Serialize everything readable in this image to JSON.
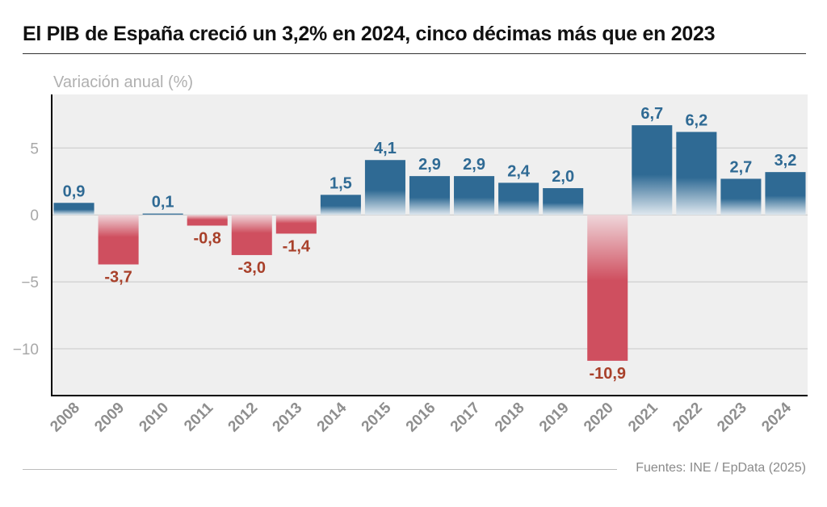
{
  "header": {
    "title": "El PIB de España creció un 3,2% en 2024, cinco décimas más que en 2023"
  },
  "footer": {
    "source": "Fuentes: INE / EpData (2025)"
  },
  "colors": {
    "positive": "#2f6a94",
    "negative": "#cf4f5f",
    "positive_label": "#2f6a94",
    "negative_label": "#a8402a",
    "plot_background": "#efefef",
    "grid": "#c8c8c8",
    "tick_label": "#a8a8a8"
  },
  "chart_data": {
    "type": "bar",
    "title": "El PIB de España creció un 3,2% en 2024, cinco décimas más que en 2023",
    "ylabel": "Variación anual (%)",
    "xlabel": "",
    "categories": [
      "2008",
      "2009",
      "2010",
      "2011",
      "2012",
      "2013",
      "2014",
      "2015",
      "2016",
      "2017",
      "2018",
      "2019",
      "2020",
      "2021",
      "2022",
      "2023",
      "2024"
    ],
    "values": [
      0.9,
      -3.7,
      0.1,
      -0.8,
      -3.0,
      -1.4,
      1.5,
      4.1,
      2.9,
      2.9,
      2.4,
      2.0,
      -10.9,
      6.7,
      6.2,
      2.7,
      3.2
    ],
    "data_labels": [
      "0,9",
      "-3,7",
      "0,1",
      "-0,8",
      "-3,0",
      "-1,4",
      "1,5",
      "4,1",
      "2,9",
      "2,9",
      "2,4",
      "2,0",
      "-10,9",
      "6,7",
      "6,2",
      "2,7",
      "3,2"
    ],
    "ylim": [
      -13.5,
      9
    ],
    "yticks": [
      5,
      0,
      -5,
      -10
    ],
    "ytick_labels": [
      "5",
      "0",
      "−5",
      "−10"
    ],
    "grid": true,
    "legend": "none"
  }
}
